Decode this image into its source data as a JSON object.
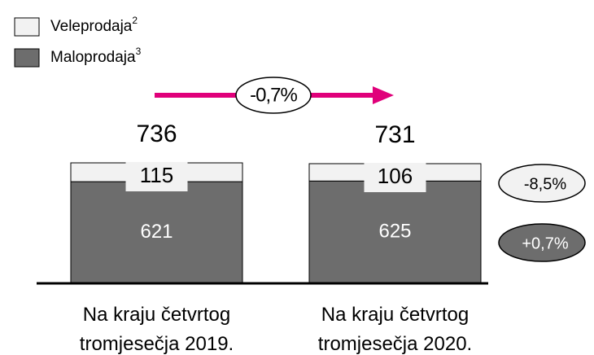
{
  "chart_data": {
    "type": "stacked-bar",
    "categories": [
      "Na kraju četvrtog\ntromjesečja 2019.",
      "Na kraju četvrtog\ntromjesečja 2020."
    ],
    "series": [
      {
        "name": "Maloprodaja",
        "footnote": "3",
        "color": "#6d6d6d",
        "values": [
          621,
          625
        ],
        "change": "+0,7%"
      },
      {
        "name": "Veleprodaja",
        "footnote": "2",
        "color": "#f2f2f2",
        "values": [
          115,
          106
        ],
        "change": "-8,5%"
      }
    ],
    "totals": [
      736,
      731
    ],
    "total_change": "-0,7%",
    "arrow_color": "#e0007a"
  }
}
